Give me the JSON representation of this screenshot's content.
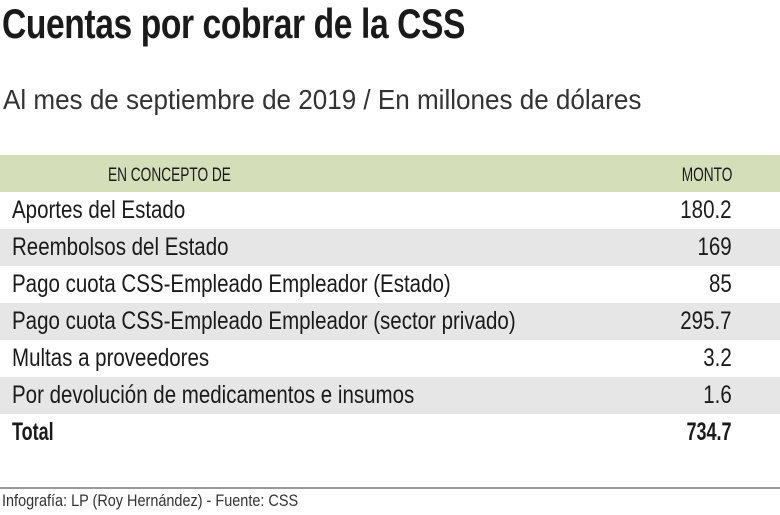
{
  "title": "Cuentas por cobrar de la CSS",
  "subtitle": "Al mes de septiembre de 2019 / En millones de dólares",
  "credit": "Infografía: LP (Roy Hernández) - Fuente: CSS",
  "colors": {
    "header_bg": "#d4dfba",
    "stripe_bg": "#e6e6e6"
  },
  "chart_data": {
    "type": "table",
    "columns": [
      "EN CONCEPTO DE",
      "MONTO"
    ],
    "rows": [
      {
        "concept": "Aportes del Estado",
        "amount": "180.2"
      },
      {
        "concept": "Reembolsos del Estado",
        "amount": "169"
      },
      {
        "concept": "Pago cuota CSS-Empleado Empleador (Estado)",
        "amount": "85"
      },
      {
        "concept": "Pago cuota CSS-Empleado Empleador (sector privado)",
        "amount": "295.7"
      },
      {
        "concept": "Multas a proveedores",
        "amount": "3.2"
      },
      {
        "concept": "Por devolución de medicamentos e insumos",
        "amount": "1.6"
      }
    ],
    "total": {
      "label": "Total",
      "amount": "734.7"
    }
  }
}
